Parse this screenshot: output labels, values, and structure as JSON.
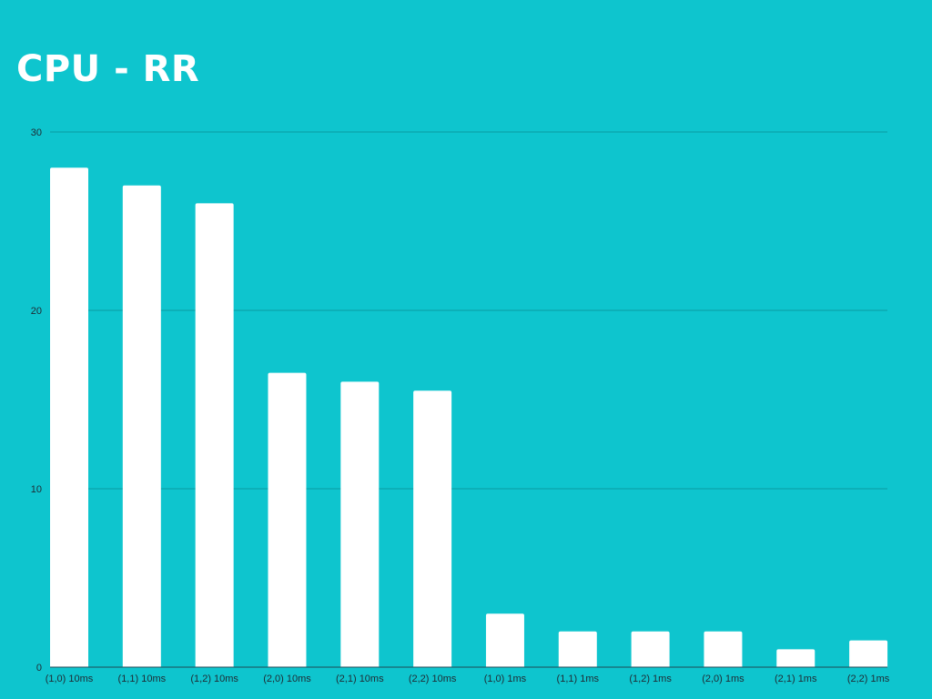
{
  "chart_data": {
    "type": "bar",
    "title": "CPU - RR",
    "xlabel": "",
    "ylabel": "",
    "categories": [
      "(1,0) 10ms",
      "(1,1) 10ms",
      "(1,2) 10ms",
      "(2,0) 10ms",
      "(2,1) 10ms",
      "(2,2) 10ms",
      "(1,0) 1ms",
      "(1,1) 1ms",
      "(1,2) 1ms",
      "(2,0) 1ms",
      "(2,1) 1ms",
      "(2,2) 1ms"
    ],
    "values": [
      28,
      27,
      26,
      16.5,
      16,
      15.5,
      3,
      2,
      2,
      2,
      1,
      1.5
    ],
    "ylim": [
      0,
      30
    ],
    "yticks": [
      0,
      10,
      20,
      30
    ],
    "grid": true,
    "legend": "none",
    "colors": {
      "background": "#0ec5ce",
      "bar": "#ffffff",
      "grid": "#0a9aa3",
      "text": "#1f2a33",
      "title": "#ffffff"
    }
  }
}
